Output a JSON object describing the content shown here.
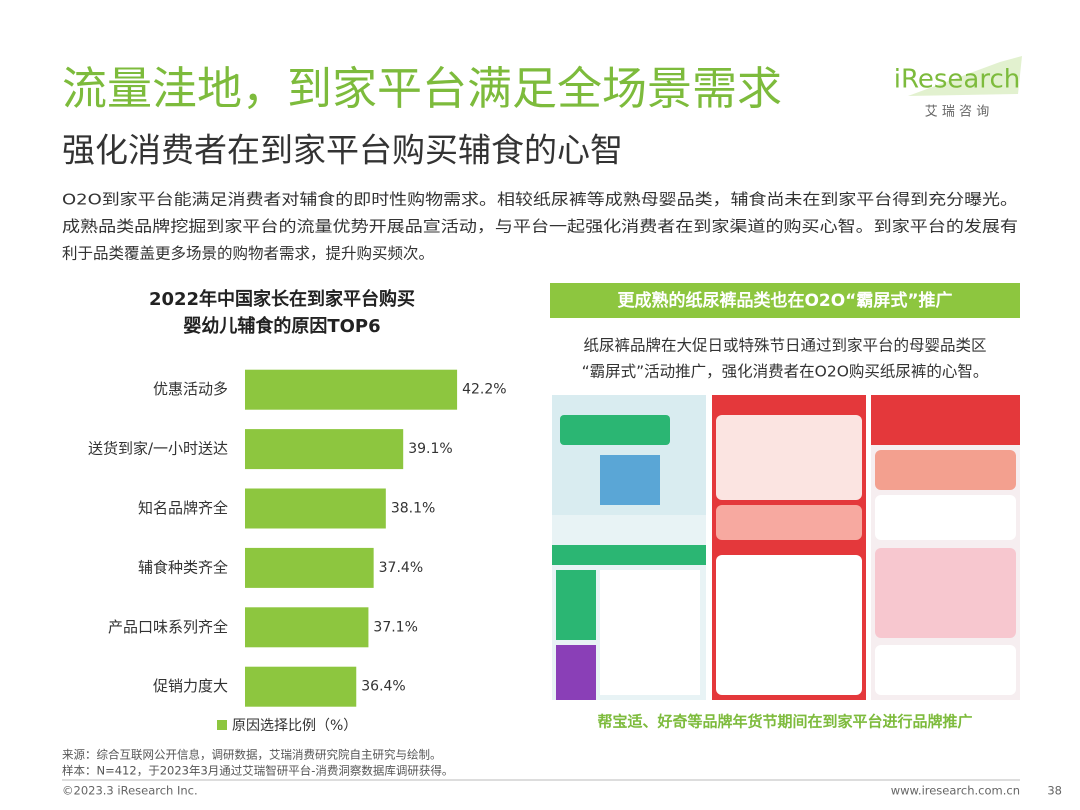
{
  "header": {
    "title": "流量洼地，到家平台满足全场景需求",
    "subtitle": "强化消费者在到家平台购买辅食的心智",
    "logo": "iResearch",
    "logo_sub": "艾 瑞 咨 询"
  },
  "body": {
    "paragraph": [
      "O2O到家平台能满足消费者对辅食的即时性购物需求。相较纸尿裤等成熟母婴品类，辅食尚未在到家平台得到充分曝光。",
      "成熟品类品牌挖掘到家平台的流量优势开展品宣活动，与平台一起强化消费者在到家渠道的购买心智。到家平台的发展有",
      "利于品类覆盖更多场景的购物者需求，提升购买频次。"
    ]
  },
  "chart_data": {
    "type": "bar",
    "orientation": "horizontal",
    "title": [
      "2022年中国家长在到家平台购买",
      "婴幼儿辅食的原因TOP6"
    ],
    "categories": [
      "优惠活动多",
      "送货到家/一小时送达",
      "知名品牌齐全",
      "辅食种类齐全",
      "产品口味系列齐全",
      "促销力度大"
    ],
    "series": [
      {
        "name": "原因选择比例（%）",
        "color": "#8dc63f",
        "values": [
          42.2,
          39.1,
          38.1,
          37.4,
          37.1,
          36.4
        ],
        "value_labels": [
          "42.2%",
          "39.1%",
          "38.1%",
          "37.4%",
          "37.1%",
          "36.4%"
        ]
      }
    ],
    "xlim": [
      30,
      43
    ]
  },
  "promo": {
    "banner": "更成熟的纸尿裤品类也在O2O“霸屏式”推广",
    "description": [
      "纸尿裤品牌在大促日或特殊节日通过到家平台的母婴品类区",
      "“霸屏式”活动推广，强化消费者在O2O购买纸尿裤的心智。"
    ],
    "caption": "帮宝适、好奇等品牌年货节期间在到家平台进行品牌推广"
  },
  "source": [
    "来源：综合互联网公开信息，调研数据，艾瑞消费研究院自主研究与绘制。",
    "样本：N=412，于2023年3月通过艾瑞智研平台-消费洞察数据库调研获得。"
  ],
  "footer": {
    "copyright": "©2023.3 iResearch Inc.",
    "url": "www.iresearch.com.cn",
    "page": "38"
  }
}
